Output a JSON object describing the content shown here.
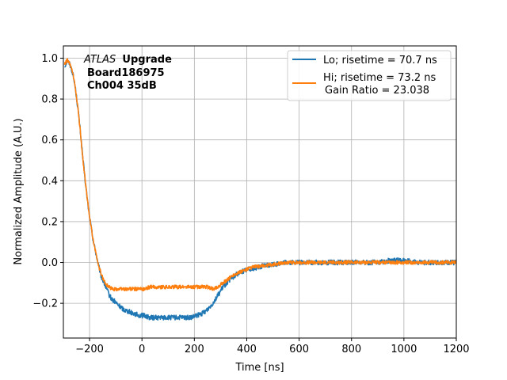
{
  "chart_data": {
    "type": "line",
    "xlabel": "Time [ns]",
    "ylabel": "Normalized Amplitude (A.U.)",
    "xlim": [
      -300,
      1200
    ],
    "ylim": [
      -0.37,
      1.06
    ],
    "xticks": [
      -200,
      0,
      200,
      400,
      600,
      800,
      1000,
      1200
    ],
    "yticks": [
      -0.2,
      0.0,
      0.2,
      0.4,
      0.6,
      0.8,
      1.0
    ],
    "xtick_labels": [
      "−200",
      "0",
      "200",
      "400",
      "600",
      "800",
      "1000",
      "1200"
    ],
    "ytick_labels": [
      "−0.2",
      "0.0",
      "0.2",
      "0.4",
      "0.6",
      "0.8",
      "1.0"
    ],
    "grid": true,
    "legend_position": "top-right",
    "annotation": {
      "italic": "ATLAS",
      "bold": "Upgrade",
      "line2": "Board186975",
      "line3": "Ch004 35dB"
    },
    "series": [
      {
        "name": "Lo; risetime = 70.7 ns",
        "color": "#1f77b4",
        "x": [
          -295,
          -285,
          -275,
          -265,
          -255,
          -245,
          -235,
          -225,
          -215,
          -205,
          -195,
          -185,
          -175,
          -165,
          -155,
          -145,
          -135,
          -125,
          -115,
          -105,
          -90,
          -70,
          -50,
          -30,
          -10,
          10,
          30,
          50,
          70,
          90,
          110,
          130,
          150,
          170,
          190,
          210,
          230,
          250,
          270,
          290,
          310,
          330,
          350,
          370,
          390,
          410,
          430,
          450,
          500,
          550,
          600,
          650,
          700,
          750,
          800,
          850,
          900,
          950,
          1000,
          1050,
          1100,
          1150,
          1200
        ],
        "y": [
          0.96,
          0.99,
          0.97,
          0.93,
          0.86,
          0.76,
          0.64,
          0.5,
          0.38,
          0.27,
          0.18,
          0.1,
          0.04,
          -0.02,
          -0.07,
          -0.1,
          -0.13,
          -0.16,
          -0.18,
          -0.19,
          -0.21,
          -0.23,
          -0.24,
          -0.25,
          -0.26,
          -0.26,
          -0.27,
          -0.27,
          -0.27,
          -0.27,
          -0.27,
          -0.27,
          -0.27,
          -0.27,
          -0.27,
          -0.26,
          -0.25,
          -0.23,
          -0.2,
          -0.16,
          -0.12,
          -0.09,
          -0.07,
          -0.05,
          -0.04,
          -0.03,
          -0.03,
          -0.02,
          -0.01,
          0.0,
          0.0,
          0.0,
          0.0,
          0.0,
          0.0,
          0.0,
          0.0,
          0.01,
          0.01,
          0.0,
          0.0,
          0.0,
          0.0
        ]
      },
      {
        "name": "Hi; risetime = 73.2 ns",
        "name_line2": "Gain Ratio = 23.038",
        "color": "#ff7f0e",
        "x": [
          -295,
          -285,
          -275,
          -265,
          -255,
          -245,
          -235,
          -225,
          -215,
          -205,
          -195,
          -185,
          -175,
          -165,
          -155,
          -145,
          -135,
          -125,
          -115,
          -105,
          -90,
          -70,
          -50,
          -30,
          -10,
          10,
          30,
          50,
          70,
          90,
          110,
          130,
          150,
          170,
          190,
          210,
          230,
          250,
          270,
          290,
          310,
          330,
          350,
          370,
          390,
          410,
          430,
          450,
          500,
          550,
          600,
          650,
          700,
          750,
          800,
          850,
          900,
          950,
          1000,
          1050,
          1100,
          1150,
          1200
        ],
        "y": [
          0.97,
          0.99,
          0.97,
          0.93,
          0.86,
          0.76,
          0.64,
          0.5,
          0.38,
          0.27,
          0.18,
          0.1,
          0.04,
          -0.02,
          -0.06,
          -0.09,
          -0.11,
          -0.12,
          -0.13,
          -0.13,
          -0.13,
          -0.13,
          -0.13,
          -0.13,
          -0.13,
          -0.13,
          -0.12,
          -0.12,
          -0.12,
          -0.12,
          -0.12,
          -0.12,
          -0.12,
          -0.12,
          -0.12,
          -0.12,
          -0.12,
          -0.12,
          -0.13,
          -0.12,
          -0.1,
          -0.08,
          -0.06,
          -0.05,
          -0.04,
          -0.03,
          -0.02,
          -0.02,
          -0.01,
          0.0,
          0.0,
          0.0,
          0.0,
          0.0,
          0.0,
          0.0,
          0.0,
          0.0,
          0.0,
          0.0,
          0.0,
          0.0,
          0.0
        ]
      }
    ]
  }
}
